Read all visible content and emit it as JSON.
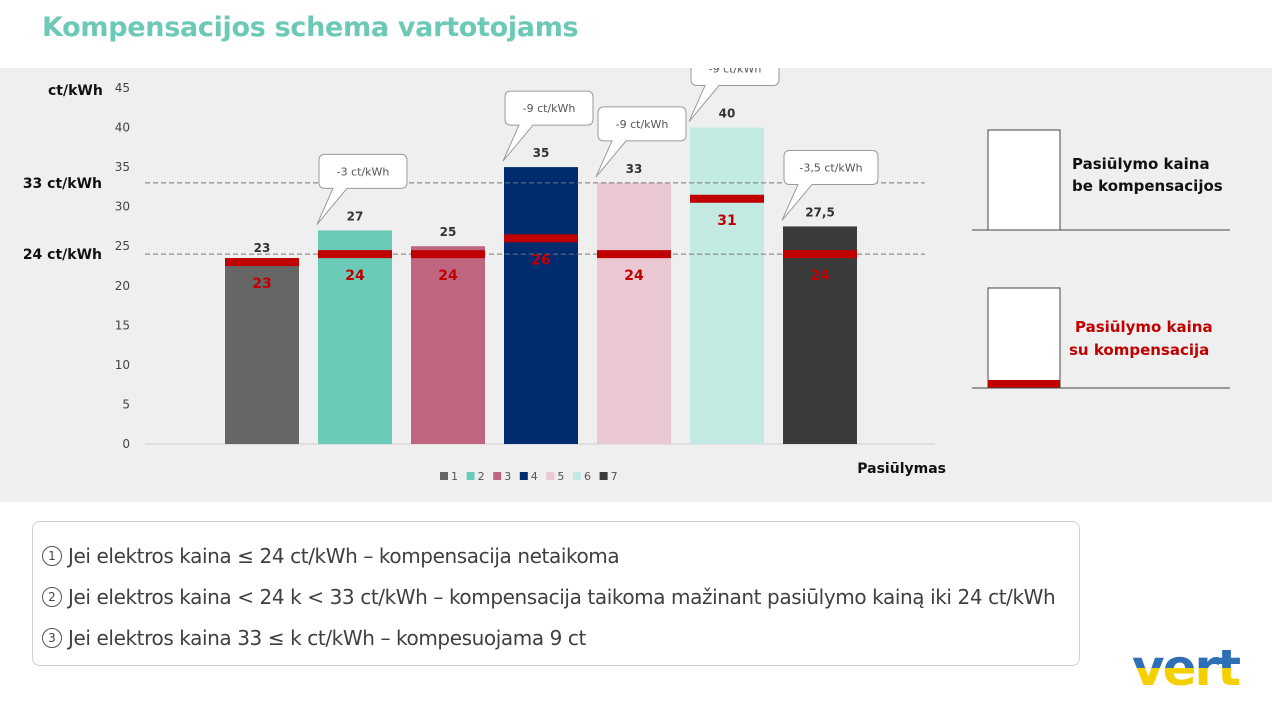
{
  "title": "Kompensacijos schema vartotojams",
  "chart_data": {
    "type": "bar",
    "categories": [
      "1",
      "2",
      "3",
      "4",
      "5",
      "6",
      "7"
    ],
    "series": [
      {
        "values": [
          23,
          27,
          25,
          35,
          33,
          40,
          27.5
        ],
        "value_labels": [
          "23",
          "27",
          "25",
          "35",
          "33",
          "40",
          "27,5"
        ],
        "colors": [
          "#666666",
          "#6ccab8",
          "#c06580",
          "#002b6e",
          "#e9c7d3",
          "#c2eae3",
          "#3b3b3b"
        ]
      },
      {
        "values": [
          23,
          24,
          24,
          26,
          24,
          31,
          24
        ],
        "value_labels": [
          "23",
          "24",
          "24",
          "26",
          "24",
          "31",
          "24"
        ],
        "color": "#c00000"
      }
    ],
    "ylabel": "ct/kWh",
    "xlabel": "Pasiūlymas",
    "ylim": [
      0,
      45
    ],
    "yticks": [
      "0",
      "5",
      "10",
      "15",
      "20",
      "25",
      "30",
      "35",
      "40",
      "45"
    ],
    "reference_lines": [
      {
        "value": 33,
        "label": "33 ct/kWh"
      },
      {
        "value": 24,
        "label": "24 ct/kWh"
      }
    ],
    "callouts": [
      {
        "bar": 1,
        "text": "-3 ct/kWh"
      },
      {
        "bar": 3,
        "text": "-9 ct/kWh"
      },
      {
        "bar": 4,
        "text": "-9 ct/kWh"
      },
      {
        "bar": 5,
        "text": "-9 ct/kWh"
      },
      {
        "bar": 6,
        "text": "-3,5 ct/kWh"
      }
    ],
    "legend_position": "bottom"
  },
  "key": {
    "without_comp": [
      "Pasiūlymo kaina",
      "be kompensacijos"
    ],
    "with_comp": [
      "Pasiūlymo kaina",
      "su kompensacija"
    ]
  },
  "rules": [
    {
      "num": "1",
      "text": "Jei elektros kaina ≤ 24 ct/kWh – kompensacija netaikoma"
    },
    {
      "num": "2",
      "text": "Jei elektros kaina  < 24 k  < 33 ct/kWh – kompensacija taikoma mažinant pasiūlymo kainą iki 24 ct/kWh"
    },
    {
      "num": "3",
      "text": "Jei elektros kaina   33 ≤ k  ct/kWh – kompesuojama 9 ct"
    }
  ],
  "logo": {
    "text": "vert",
    "colors": [
      "#2f6fb5",
      "#f5d000"
    ]
  }
}
